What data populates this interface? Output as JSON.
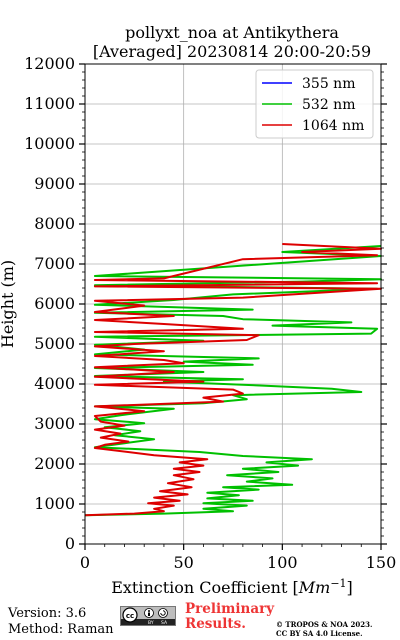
{
  "chart_data": {
    "type": "line",
    "title": "pollyxt_noa at Antikythera",
    "subtitle": "[Averaged] 20230814 20:00-20:59",
    "xlabel_text": "Extinction Coefficient [",
    "xlabel_unit_base": "Mm",
    "xlabel_unit_exp": "−1",
    "xlabel_close": "]",
    "ylabel": "Height (m)",
    "xlim": [
      0,
      150
    ],
    "ylim": [
      0,
      12000
    ],
    "x_ticks": [
      0,
      50,
      100,
      150
    ],
    "x_tick_labels": [
      "0",
      "50",
      "100",
      "150"
    ],
    "y_ticks": [
      0,
      1000,
      2000,
      3000,
      4000,
      5000,
      6000,
      7000,
      8000,
      9000,
      10000,
      11000,
      12000
    ],
    "y_tick_labels": [
      "0",
      "1000",
      "2000",
      "3000",
      "4000",
      "5000",
      "6000",
      "7000",
      "8000",
      "9000",
      "10000",
      "11000",
      "12000"
    ],
    "grid": true,
    "legend_position": "top-right",
    "series": [
      {
        "name": "355 nm",
        "color": "#0000ff",
        "points": []
      },
      {
        "name": "532 nm",
        "color": "#00c000",
        "points": [
          [
            0,
            720
          ],
          [
            40,
            760
          ],
          [
            75,
            820
          ],
          [
            60,
            880
          ],
          [
            82,
            960
          ],
          [
            60,
            1020
          ],
          [
            85,
            1080
          ],
          [
            62,
            1140
          ],
          [
            78,
            1220
          ],
          [
            62,
            1280
          ],
          [
            88,
            1360
          ],
          [
            70,
            1420
          ],
          [
            105,
            1480
          ],
          [
            82,
            1560
          ],
          [
            95,
            1640
          ],
          [
            72,
            1720
          ],
          [
            98,
            1800
          ],
          [
            80,
            1880
          ],
          [
            108,
            1960
          ],
          [
            92,
            2040
          ],
          [
            115,
            2120
          ],
          [
            80,
            2200
          ],
          [
            58,
            2300
          ],
          [
            5,
            2420
          ],
          [
            20,
            2520
          ],
          [
            35,
            2620
          ],
          [
            15,
            2720
          ],
          [
            28,
            2820
          ],
          [
            10,
            2920
          ],
          [
            30,
            3020
          ],
          [
            5,
            3120
          ],
          [
            18,
            3220
          ],
          [
            45,
            3380
          ],
          [
            5,
            3440
          ],
          [
            60,
            3520
          ],
          [
            82,
            3620
          ],
          [
            75,
            3720
          ],
          [
            140,
            3800
          ],
          [
            125,
            3880
          ],
          [
            90,
            3960
          ],
          [
            40,
            4060
          ],
          [
            80,
            4120
          ],
          [
            5,
            4200
          ],
          [
            60,
            4300
          ],
          [
            5,
            4400
          ],
          [
            85,
            4480
          ],
          [
            50,
            4560
          ],
          [
            88,
            4640
          ],
          [
            5,
            4740
          ],
          [
            30,
            4860
          ],
          [
            5,
            4980
          ],
          [
            60,
            5080
          ],
          [
            5,
            5180
          ],
          [
            145,
            5260
          ],
          [
            148,
            5380
          ],
          [
            95,
            5460
          ],
          [
            135,
            5540
          ],
          [
            80,
            5620
          ],
          [
            70,
            5700
          ],
          [
            5,
            5780
          ],
          [
            85,
            5860
          ],
          [
            5,
            5980
          ],
          [
            45,
            6100
          ],
          [
            75,
            6240
          ],
          [
            148,
            6380
          ],
          [
            5,
            6470
          ],
          [
            110,
            6560
          ],
          [
            150,
            6620
          ],
          [
            5,
            6700
          ],
          [
            150,
            7200
          ],
          [
            100,
            7300
          ],
          [
            150,
            7450
          ]
        ]
      },
      {
        "name": "1064 nm",
        "color": "#dd0000",
        "points": [
          [
            0,
            720
          ],
          [
            25,
            760
          ],
          [
            40,
            820
          ],
          [
            35,
            880
          ],
          [
            45,
            960
          ],
          [
            32,
            1020
          ],
          [
            48,
            1080
          ],
          [
            35,
            1160
          ],
          [
            52,
            1240
          ],
          [
            38,
            1320
          ],
          [
            54,
            1420
          ],
          [
            42,
            1520
          ],
          [
            55,
            1620
          ],
          [
            45,
            1720
          ],
          [
            58,
            1800
          ],
          [
            45,
            1880
          ],
          [
            60,
            1960
          ],
          [
            48,
            2040
          ],
          [
            62,
            2120
          ],
          [
            35,
            2220
          ],
          [
            5,
            2400
          ],
          [
            10,
            2480
          ],
          [
            22,
            2560
          ],
          [
            8,
            2660
          ],
          [
            18,
            2760
          ],
          [
            5,
            2860
          ],
          [
            20,
            2960
          ],
          [
            8,
            3060
          ],
          [
            5,
            3200
          ],
          [
            30,
            3320
          ],
          [
            5,
            3440
          ],
          [
            70,
            3560
          ],
          [
            60,
            3660
          ],
          [
            80,
            3760
          ],
          [
            75,
            3860
          ],
          [
            5,
            3980
          ],
          [
            60,
            4060
          ],
          [
            5,
            4180
          ],
          [
            45,
            4300
          ],
          [
            5,
            4420
          ],
          [
            50,
            4520
          ],
          [
            40,
            4600
          ],
          [
            5,
            4700
          ],
          [
            40,
            4820
          ],
          [
            5,
            4940
          ],
          [
            25,
            5000
          ],
          [
            82,
            5100
          ],
          [
            88,
            5220
          ],
          [
            5,
            5300
          ],
          [
            80,
            5380
          ],
          [
            40,
            5500
          ],
          [
            5,
            5600
          ],
          [
            45,
            5700
          ],
          [
            5,
            5800
          ],
          [
            30,
            5960
          ],
          [
            5,
            6080
          ],
          [
            80,
            6160
          ],
          [
            150,
            6380
          ],
          [
            5,
            6440
          ],
          [
            148,
            6520
          ],
          [
            5,
            6600
          ],
          [
            40,
            6640
          ],
          [
            80,
            7120
          ],
          [
            148,
            7220
          ],
          [
            110,
            7300
          ],
          [
            150,
            7380
          ],
          [
            100,
            7500
          ]
        ]
      }
    ]
  },
  "footer": {
    "version": "Version: 3.6",
    "method": "Method: Raman",
    "license_badge_text": "cc BY SA",
    "preliminary_line1": "Preliminary",
    "preliminary_line2": "Results.",
    "copyright_line1": "© TROPOS & NOA 2023.",
    "copyright_line2": "CC BY SA 4.0 License."
  },
  "colors": {
    "accent_red": "#ee3535",
    "grid": "#b0b0b0"
  }
}
